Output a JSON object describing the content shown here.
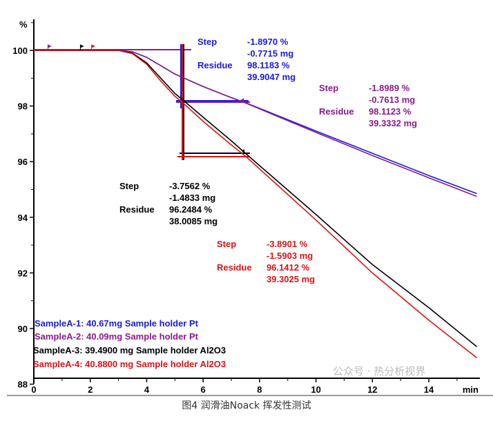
{
  "chart_data": {
    "type": "line",
    "ylabel": "%",
    "xlabel": "min",
    "xlim": [
      0,
      15.7
    ],
    "ylim": [
      88,
      100.6
    ],
    "xticks": [
      "0",
      "2",
      "4",
      "6",
      "8",
      "10",
      "12",
      "14"
    ],
    "yticks": [
      "88",
      "90",
      "92",
      "94",
      "96",
      "98",
      "100"
    ],
    "series": [
      {
        "name": "SampleA-1: 40.67mg  Sample holder Pt",
        "color": "#1a1adf",
        "points": [
          [
            0,
            100
          ],
          [
            3,
            100
          ],
          [
            3.5,
            99.95
          ],
          [
            4,
            99.75
          ],
          [
            4.5,
            99.45
          ],
          [
            5,
            99.15
          ],
          [
            6,
            98.7
          ],
          [
            7,
            98.3
          ],
          [
            7.5,
            98.12
          ],
          [
            10,
            97.1
          ],
          [
            12,
            96.3
          ],
          [
            14,
            95.5
          ],
          [
            15.7,
            94.85
          ]
        ]
      },
      {
        "name": "SampleA-2: 40.09mg Sample holder Pt",
        "color": "#8b1a8b",
        "points": [
          [
            0,
            100
          ],
          [
            3,
            100
          ],
          [
            3.5,
            99.95
          ],
          [
            4,
            99.75
          ],
          [
            4.5,
            99.45
          ],
          [
            5,
            99.15
          ],
          [
            6,
            98.7
          ],
          [
            7,
            98.3
          ],
          [
            7.5,
            98.11
          ],
          [
            10,
            97.05
          ],
          [
            12,
            96.22
          ],
          [
            14,
            95.42
          ],
          [
            15.7,
            94.75
          ]
        ]
      },
      {
        "name": "SampleA-3: 39.4900 mg Sample holder Al2O3",
        "color": "#000000",
        "points": [
          [
            0,
            100
          ],
          [
            3,
            100
          ],
          [
            3.5,
            99.9
          ],
          [
            4,
            99.55
          ],
          [
            4.5,
            99.0
          ],
          [
            5,
            98.45
          ],
          [
            5.3,
            98.2
          ],
          [
            6,
            97.6
          ],
          [
            7,
            96.75
          ],
          [
            7.5,
            96.3
          ],
          [
            10,
            94.1
          ],
          [
            12,
            92.3
          ],
          [
            14,
            90.75
          ],
          [
            15.7,
            89.35
          ]
        ]
      },
      {
        "name": "SampleA-4:  40.8800 mg Sample holder Al2O3",
        "color": "#e01010",
        "points": [
          [
            0,
            100
          ],
          [
            3,
            100
          ],
          [
            3.5,
            99.88
          ],
          [
            4,
            99.5
          ],
          [
            4.5,
            98.9
          ],
          [
            5,
            98.35
          ],
          [
            5.3,
            98.1
          ],
          [
            6,
            97.45
          ],
          [
            7,
            96.6
          ],
          [
            7.5,
            96.2
          ],
          [
            10,
            93.9
          ],
          [
            12,
            92.0
          ],
          [
            14,
            90.3
          ],
          [
            15.7,
            88.95
          ]
        ]
      }
    ],
    "annotations": [
      {
        "color": "#1a1adf",
        "step_label": "Step",
        "step_pct": "-1.8970 %",
        "step_mg": "-0.7715 mg",
        "residue_label": "Residue",
        "residue_pct": "98.1183 %",
        "residue_mg": "39.9047 mg"
      },
      {
        "color": "#8b1a8b",
        "step_label": "Step",
        "step_pct": "-1.8989 %",
        "step_mg": "-0.7613 mg",
        "residue_label": "Residue",
        "residue_pct": "98.1123 %",
        "residue_mg": "39.3332 mg"
      },
      {
        "color": "#000000",
        "step_label": "Step",
        "step_pct": "-3.7562 %",
        "step_mg": "-1.4833 mg",
        "residue_label": "Residue",
        "residue_pct": "96.2484 %",
        "residue_mg": "38.0085 mg"
      },
      {
        "color": "#e01010",
        "step_label": "Step",
        "step_pct": "-3.8901 %",
        "step_mg": "-1.5903 mg",
        "residue_label": "Residue",
        "residue_pct": "96.1412 %",
        "residue_mg": "39.3025 mg"
      }
    ]
  },
  "caption": "图4  润滑油Noack 挥发性测试",
  "watermark": "公众号 · 热分析视界"
}
